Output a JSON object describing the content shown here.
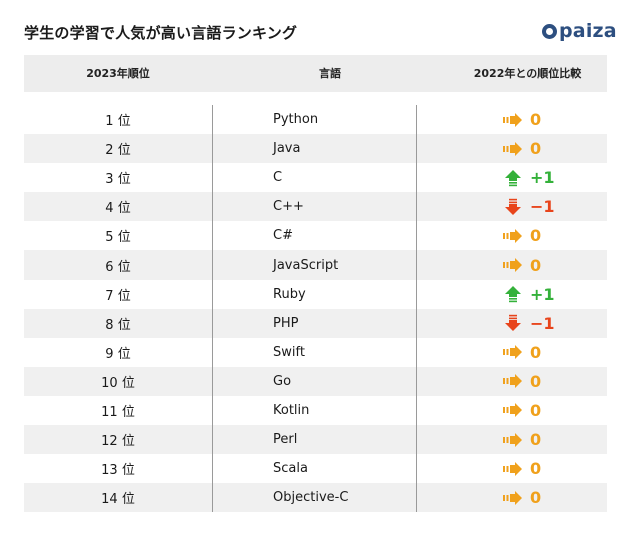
{
  "title": "学生の学習で人気が高い言語ランキング",
  "logo_text": "paiza",
  "headers": {
    "rank": "2023年順位",
    "language": "言語",
    "change": "2022年との順位比較"
  },
  "colors": {
    "same": "#f0a11c",
    "up": "#34b13a",
    "down": "#e8441b"
  },
  "rows": [
    {
      "rank": "1 位",
      "language": "Python",
      "change": "0",
      "trend": "same"
    },
    {
      "rank": "2 位",
      "language": "Java",
      "change": "0",
      "trend": "same"
    },
    {
      "rank": "3 位",
      "language": "C",
      "change": "+1",
      "trend": "up"
    },
    {
      "rank": "4 位",
      "language": "C++",
      "change": "−1",
      "trend": "down"
    },
    {
      "rank": "5 位",
      "language": "C#",
      "change": "0",
      "trend": "same"
    },
    {
      "rank": "6 位",
      "language": "JavaScript",
      "change": "0",
      "trend": "same"
    },
    {
      "rank": "7 位",
      "language": "Ruby",
      "change": "+1",
      "trend": "up"
    },
    {
      "rank": "8 位",
      "language": "PHP",
      "change": "−1",
      "trend": "down"
    },
    {
      "rank": "9 位",
      "language": "Swift",
      "change": "0",
      "trend": "same"
    },
    {
      "rank": "10 位",
      "language": "Go",
      "change": "0",
      "trend": "same"
    },
    {
      "rank": "11 位",
      "language": "Kotlin",
      "change": "0",
      "trend": "same"
    },
    {
      "rank": "12 位",
      "language": "Perl",
      "change": "0",
      "trend": "same"
    },
    {
      "rank": "13 位",
      "language": "Scala",
      "change": "0",
      "trend": "same"
    },
    {
      "rank": "14 位",
      "language": "Objective-C",
      "change": "0",
      "trend": "same"
    }
  ]
}
